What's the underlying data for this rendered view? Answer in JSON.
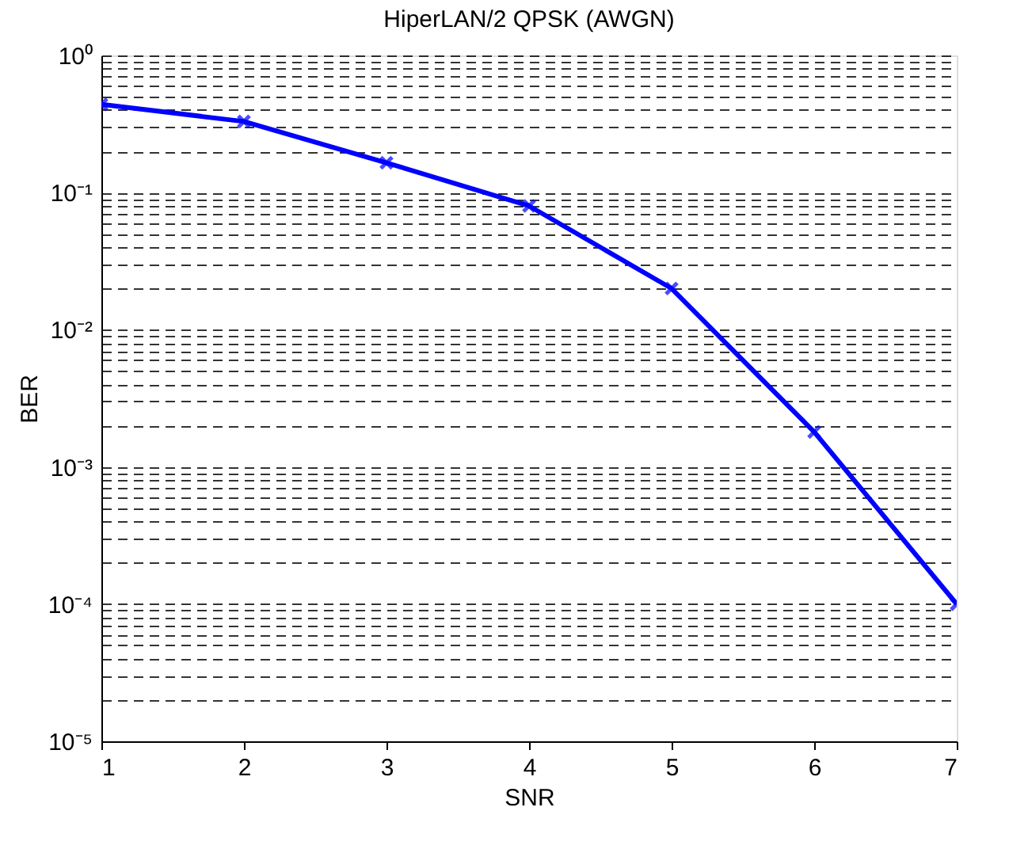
{
  "chart_data": {
    "type": "line",
    "title": "HiperLAN/2 QPSK (AWGN)",
    "xlabel": "SNR",
    "ylabel": "BER",
    "x": [
      1,
      2,
      3,
      4,
      5,
      6,
      7
    ],
    "series": [
      {
        "color": "#0000ff",
        "values": [
          0.44,
          0.33,
          0.165,
          0.08,
          0.02,
          0.0018,
          0.0001
        ]
      }
    ],
    "xlim": [
      1,
      7
    ],
    "xticks": [
      1,
      2,
      3,
      4,
      5,
      6,
      7
    ],
    "ylim": [
      1e-05,
      1
    ],
    "yticks": [
      {
        "value": 1e-05,
        "label": "10⁻⁵"
      },
      {
        "value": 2e-05,
        "label": null
      },
      {
        "value": 3e-05,
        "label": null
      },
      {
        "value": 4e-05,
        "label": null
      },
      {
        "value": 5e-05,
        "label": null
      },
      {
        "value": 6e-05,
        "label": null
      },
      {
        "value": 7e-05,
        "label": null
      },
      {
        "value": 8e-05,
        "label": null
      },
      {
        "value": 9e-05,
        "label": null
      },
      {
        "value": 0.0001,
        "label": "10⁻⁴"
      },
      {
        "value": 0.0002,
        "label": null
      },
      {
        "value": 0.0003,
        "label": null
      },
      {
        "value": 0.0004,
        "label": null
      },
      {
        "value": 0.0005,
        "label": null
      },
      {
        "value": 0.0006,
        "label": null
      },
      {
        "value": 0.0007,
        "label": null
      },
      {
        "value": 0.0008,
        "label": null
      },
      {
        "value": 0.0009,
        "label": null
      },
      {
        "value": 0.001,
        "label": "10⁻³"
      },
      {
        "value": 0.002,
        "label": null
      },
      {
        "value": 0.003,
        "label": null
      },
      {
        "value": 0.004,
        "label": null
      },
      {
        "value": 0.005,
        "label": null
      },
      {
        "value": 0.006,
        "label": null
      },
      {
        "value": 0.007,
        "label": null
      },
      {
        "value": 0.008,
        "label": null
      },
      {
        "value": 0.009,
        "label": null
      },
      {
        "value": 0.01,
        "label": "10⁻²"
      },
      {
        "value": 0.02,
        "label": null
      },
      {
        "value": 0.03,
        "label": null
      },
      {
        "value": 0.04,
        "label": null
      },
      {
        "value": 0.05,
        "label": null
      },
      {
        "value": 0.06,
        "label": null
      },
      {
        "value": 0.07,
        "label": null
      },
      {
        "value": 0.08,
        "label": null
      },
      {
        "value": 0.09,
        "label": null
      },
      {
        "value": 0.1,
        "label": "10⁻¹"
      },
      {
        "value": 0.2,
        "label": null
      },
      {
        "value": 0.3,
        "label": null
      },
      {
        "value": 0.4,
        "label": null
      },
      {
        "value": 0.5,
        "label": null
      },
      {
        "value": 0.6,
        "label": null
      },
      {
        "value": 0.7,
        "label": null
      },
      {
        "value": 0.8,
        "label": null
      },
      {
        "value": 0.9,
        "label": null
      },
      {
        "value": 1,
        "label": "10⁰"
      }
    ],
    "log": "y",
    "grid": "y",
    "marker": "cross",
    "line_style": "solid"
  }
}
